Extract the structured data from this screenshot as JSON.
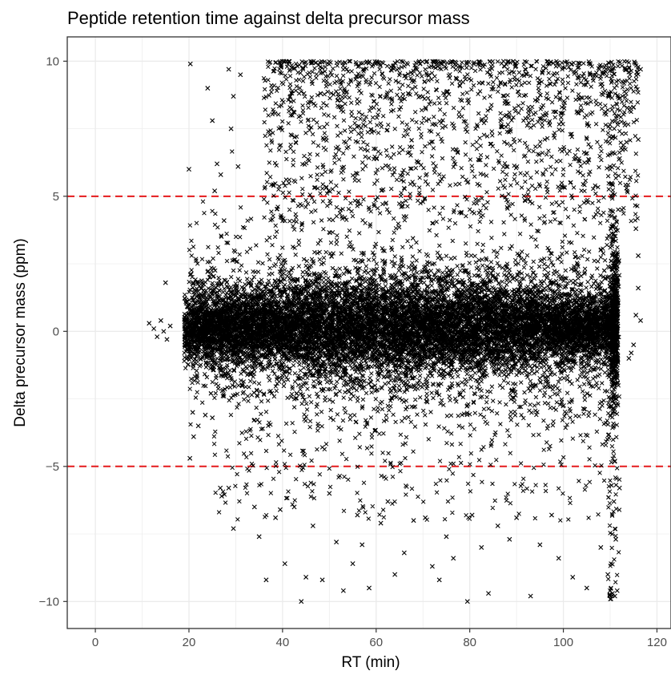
{
  "chart_data": {
    "type": "scatter",
    "title": "Peptide retention time against delta precursor mass",
    "xlabel": "RT (min)",
    "ylabel": "Delta precursor mass (ppm)",
    "xlim": [
      -6,
      123
    ],
    "ylim": [
      -11,
      10.9
    ],
    "x_ticks": [
      0,
      20,
      40,
      60,
      80,
      100,
      120
    ],
    "y_ticks": [
      -10,
      -5,
      0,
      5,
      10
    ],
    "x_tick_labels": [
      "0",
      "20",
      "40",
      "60",
      "80",
      "100",
      "120"
    ],
    "y_tick_labels": [
      "−10",
      "−5",
      "0",
      "5",
      "10"
    ],
    "grid": true,
    "marker": "x",
    "colors": {
      "points": "#000000",
      "reference_lines": "#e41a1c",
      "grid": "#ebebeb",
      "panel_border": "#333333"
    },
    "reference_lines": [
      {
        "axis": "y",
        "value": 5,
        "style": "dashed"
      },
      {
        "axis": "y",
        "value": -5,
        "style": "dashed"
      }
    ],
    "series": [
      {
        "points": [
          [
            11.5,
            0.3
          ],
          [
            12.5,
            0.1
          ],
          [
            13.2,
            -0.2
          ],
          [
            14.0,
            0.4
          ],
          [
            14.6,
            0.0
          ],
          [
            15.0,
            1.8
          ],
          [
            15.3,
            -0.3
          ],
          [
            16.0,
            0.2
          ],
          [
            20.0,
            6.0
          ],
          [
            20.3,
            9.9
          ],
          [
            20.8,
            -3.0
          ],
          [
            20.2,
            -4.7
          ],
          [
            21.0,
            -3.9
          ],
          [
            24.0,
            9.0
          ],
          [
            25.0,
            7.8
          ],
          [
            25.5,
            5.2
          ],
          [
            26.0,
            6.2
          ],
          [
            26.8,
            5.8
          ],
          [
            27.5,
            4.1
          ],
          [
            28.5,
            9.7
          ],
          [
            29.0,
            7.5
          ],
          [
            29.5,
            8.7
          ],
          [
            30.5,
            6.1
          ],
          [
            26.7,
            -5.8
          ],
          [
            27.0,
            -6.1
          ],
          [
            28.5,
            -5.8
          ],
          [
            29.5,
            -7.3
          ],
          [
            31.0,
            9.5
          ],
          [
            22.0,
            -3.5
          ],
          [
            23.5,
            -3.1
          ],
          [
            25.0,
            -3.2
          ],
          [
            24.0,
            2.2
          ],
          [
            34.0,
            -6.5
          ],
          [
            35.0,
            -7.6
          ],
          [
            36.5,
            -9.2
          ],
          [
            38.5,
            -6.9
          ],
          [
            39.5,
            -6.6
          ],
          [
            40.5,
            -8.6
          ],
          [
            42.5,
            -6.5
          ],
          [
            44.0,
            -10.0
          ],
          [
            45.0,
            -9.1
          ],
          [
            46.5,
            -7.2
          ],
          [
            48.5,
            -9.2
          ],
          [
            50.0,
            -6.0
          ],
          [
            51.5,
            -7.8
          ],
          [
            53.0,
            -9.6
          ],
          [
            55.0,
            -8.6
          ],
          [
            56.0,
            -6.8
          ],
          [
            57.0,
            -7.9
          ],
          [
            58.5,
            -9.5
          ],
          [
            61.0,
            -7.1
          ],
          [
            62.5,
            -6.3
          ],
          [
            64.0,
            -9.0
          ],
          [
            66.0,
            -8.2
          ],
          [
            68.0,
            -7.0
          ],
          [
            70.5,
            -6.9
          ],
          [
            72.0,
            -8.7
          ],
          [
            73.5,
            -9.2
          ],
          [
            75.0,
            -7.6
          ],
          [
            76.5,
            -8.4
          ],
          [
            79.5,
            -10.0
          ],
          [
            80.5,
            -6.8
          ],
          [
            82.5,
            -8.0
          ],
          [
            84.0,
            -9.7
          ],
          [
            86.0,
            -7.2
          ],
          [
            88.5,
            -7.7
          ],
          [
            90.0,
            -6.9
          ],
          [
            93.0,
            -9.8
          ],
          [
            95.0,
            -7.9
          ],
          [
            97.5,
            -6.8
          ],
          [
            99.0,
            -8.4
          ],
          [
            102.0,
            -9.1
          ],
          [
            105.0,
            -9.5
          ],
          [
            108.0,
            -8.0
          ],
          [
            109.5,
            -9.0
          ],
          [
            110.0,
            -9.6
          ],
          [
            110.5,
            -9.7
          ],
          [
            111.0,
            -9.8
          ],
          [
            111.5,
            -9.6
          ],
          [
            111.2,
            -7.7
          ],
          [
            110.8,
            -6.3
          ],
          [
            110.3,
            -5.7
          ],
          [
            111.0,
            -4.8
          ],
          [
            112.0,
            -5.8
          ],
          [
            114.0,
            -1.0
          ],
          [
            114.5,
            -0.8
          ],
          [
            115.0,
            -0.5
          ],
          [
            115.5,
            0.6
          ],
          [
            116.0,
            1.6
          ],
          [
            116.0,
            2.8
          ],
          [
            116.5,
            0.4
          ],
          [
            113.5,
            7.0
          ],
          [
            114.0,
            9.6
          ],
          [
            115.0,
            8.3
          ],
          [
            116.0,
            7.1
          ],
          [
            116.5,
            9.7
          ],
          [
            112.5,
            4.5
          ],
          [
            113.5,
            5.3
          ],
          [
            115.5,
            3.8
          ]
        ]
      }
    ]
  }
}
